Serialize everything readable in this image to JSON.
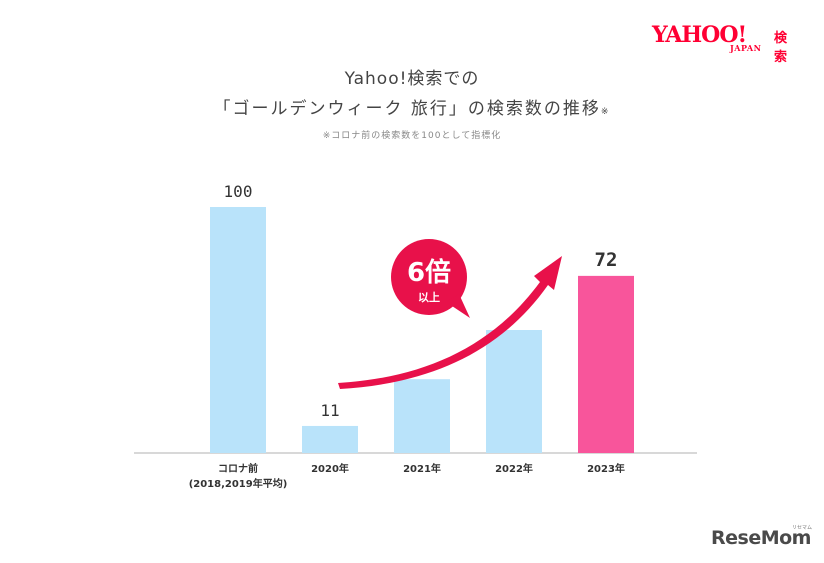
{
  "logo": {
    "main": "YAHOO!",
    "sub": "JAPAN",
    "search": "検索"
  },
  "header": {
    "title_line1": "Yahoo!検索での",
    "title_line2": "「ゴールデンウィーク 旅行」の検索数の推移",
    "title_mark": "※",
    "note": "※コロナ前の検索数を100として指標化"
  },
  "callout": {
    "big": "6倍",
    "small": "以上"
  },
  "colors": {
    "bar": "#b9e3fa",
    "highlight": "#f8559b",
    "arrow": "#e8114a",
    "baseline": "#cccccc"
  },
  "chart_data": {
    "type": "bar",
    "categories": [
      "コロナ前",
      "2020年",
      "2021年",
      "2022年",
      "2023年"
    ],
    "category_sublabels": [
      "(2018,2019年平均)",
      "",
      "",
      "",
      ""
    ],
    "values": [
      100,
      11,
      30,
      50,
      72
    ],
    "data_labels": [
      "100",
      "11",
      "",
      "",
      "72"
    ],
    "highlight_index": 4,
    "ylim": [
      0,
      100
    ]
  },
  "watermark": {
    "text": "ReseMom",
    "tiny": "リセマム"
  }
}
